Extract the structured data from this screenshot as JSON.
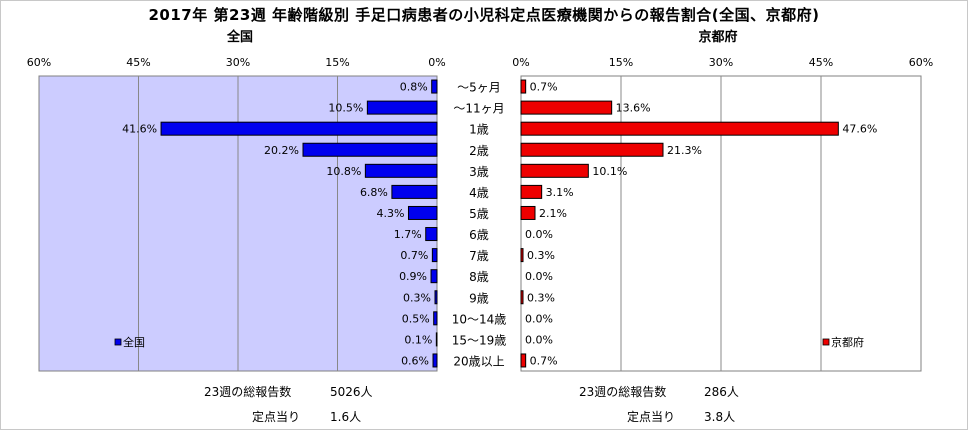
{
  "title": "2017年 第23週 年齢階級別 手足口病患者の小児科定点医療機関からの報告割合(全国、京都府)",
  "colors": {
    "national": "#0000ee",
    "kyoto": "#ee0000",
    "plot_bg": "#ccccff"
  },
  "chart_data": [
    {
      "type": "bar",
      "orientation": "horizontal",
      "direction": "right-to-left",
      "title": "全国",
      "series": [
        {
          "name": "全国",
          "values": [
            0.8,
            10.5,
            41.6,
            20.2,
            10.8,
            6.8,
            4.3,
            1.7,
            0.7,
            0.9,
            0.3,
            0.5,
            0.1,
            0.6
          ]
        }
      ],
      "value_labels": [
        "0.8%",
        "10.5%",
        "41.6%",
        "20.2%",
        "10.8%",
        "6.8%",
        "4.3%",
        "1.7%",
        "0.7%",
        "0.9%",
        "0.3%",
        "0.5%",
        "0.1%",
        "0.6%"
      ],
      "xlim": [
        0,
        60
      ],
      "ticks": [
        "0%",
        "15%",
        "30%",
        "45%",
        "60%"
      ],
      "legend": "bottom-left",
      "grid": true
    },
    {
      "type": "bar",
      "orientation": "horizontal",
      "direction": "left-to-right",
      "title": "京都府",
      "series": [
        {
          "name": "京都府",
          "values": [
            0.7,
            13.6,
            47.6,
            21.3,
            10.1,
            3.1,
            2.1,
            0.0,
            0.3,
            0.0,
            0.3,
            0.0,
            0.0,
            0.7
          ]
        }
      ],
      "value_labels": [
        "0.7%",
        "13.6%",
        "47.6%",
        "21.3%",
        "10.1%",
        "3.1%",
        "2.1%",
        "0.0%",
        "0.3%",
        "0.0%",
        "0.3%",
        "0.0%",
        "0.0%",
        "0.7%"
      ],
      "xlim": [
        0,
        60
      ],
      "ticks": [
        "0%",
        "15%",
        "30%",
        "45%",
        "60%"
      ],
      "legend": "bottom-right",
      "grid": true
    }
  ],
  "categories": [
    "～5ヶ月",
    "～11ヶ月",
    "1歳",
    "2歳",
    "3歳",
    "4歳",
    "5歳",
    "6歳",
    "7歳",
    "8歳",
    "9歳",
    "10～14歳",
    "15～19歳",
    "20歳以上"
  ],
  "summary": {
    "national": {
      "total_label": "23週の総報告数",
      "total_value": "5026人",
      "per_label": "定点当り",
      "per_value": "1.6人"
    },
    "kyoto": {
      "total_label": "23週の総報告数",
      "total_value": "286人",
      "per_label": "定点当り",
      "per_value": "3.8人"
    }
  }
}
